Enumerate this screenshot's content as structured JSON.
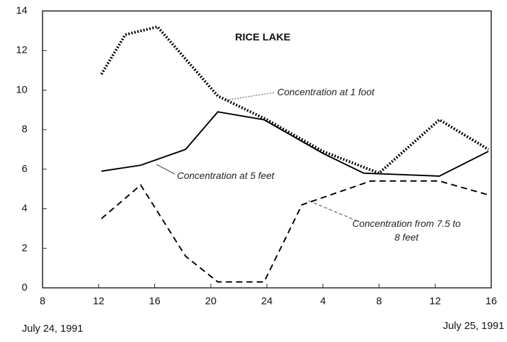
{
  "chart_data": {
    "type": "line",
    "title": "RICE LAKE",
    "xlim": [
      8,
      40
    ],
    "ylim": [
      0,
      14
    ],
    "xticks": [
      8,
      12,
      16,
      20,
      24,
      {
        "value": 28,
        "label": "4"
      },
      {
        "value": 32,
        "label": "8"
      },
      {
        "value": 36,
        "label": "12"
      },
      {
        "value": 40,
        "label": "16"
      }
    ],
    "yticks": [
      0,
      2,
      4,
      6,
      8,
      10,
      12,
      14
    ],
    "grid": false,
    "date_start": "July 24, 1991",
    "date_end": "July 25, 1991",
    "series": [
      {
        "name": "Concentration at 1 foot",
        "color": "#000000",
        "style": "dotted",
        "x": [
          12.2,
          13.9,
          16.2,
          20.5,
          24,
          28,
          32,
          36.3,
          39.8
        ],
        "values": [
          10.8,
          12.8,
          13.2,
          9.7,
          8.5,
          6.9,
          5.8,
          8.5,
          7.0
        ]
      },
      {
        "name": "Concentration at 5 feet",
        "color": "#000000",
        "style": "solid",
        "x": [
          12.2,
          15,
          18.2,
          20.5,
          23.8,
          28,
          30.9,
          36.3,
          39.8
        ],
        "values": [
          5.9,
          6.2,
          7.0,
          8.9,
          8.5,
          6.8,
          5.8,
          5.65,
          6.9
        ]
      },
      {
        "name": "Concentration from 7.5 to 8 feet",
        "color": "#000000",
        "style": "dashed",
        "x": [
          12.2,
          15,
          18.2,
          20.5,
          23.8,
          26.5,
          31.4,
          36.3,
          39.8
        ],
        "values": [
          3.5,
          5.2,
          1.6,
          0.3,
          0.3,
          4.2,
          5.4,
          5.4,
          4.7
        ]
      }
    ]
  }
}
